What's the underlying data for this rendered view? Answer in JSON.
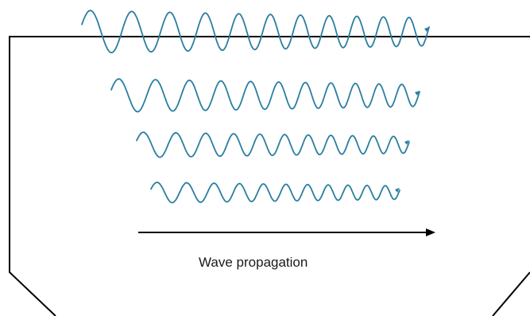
{
  "caption": "Wave propagation",
  "colors": {
    "wave": "#2a7ea0",
    "outline": "#000000",
    "arrow": "#000000"
  },
  "waves": [
    {
      "cycles": 11,
      "amplitude": 1.0
    },
    {
      "cycles": 11,
      "amplitude": 0.75
    },
    {
      "cycles": 11,
      "amplitude": 0.6
    },
    {
      "cycles": 11,
      "amplitude": 0.5
    }
  ]
}
